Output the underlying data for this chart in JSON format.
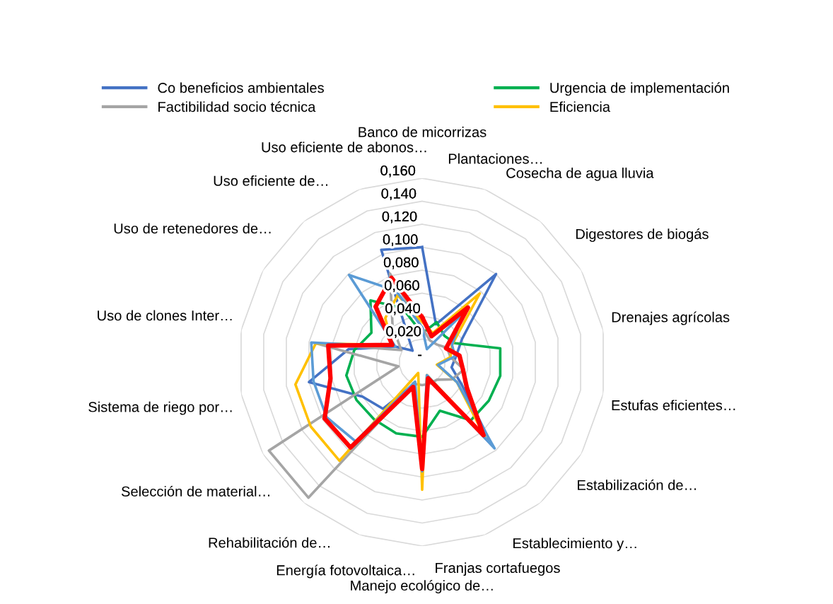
{
  "chart_data": {
    "type": "radar",
    "categories": [
      "Banco de micorrizas",
      "Plantaciones…",
      "Cosecha de agua lluvia",
      "Digestores de biogás",
      "Drenajes agrícolas",
      "Estufas eficientes…",
      "Estabilización de…",
      "Establecimiento y…",
      "Franjas cortafuegos",
      "Manejo ecológico de…",
      "Energía fotovoltaica…",
      "Rehabilitación de…",
      "Selección de material…",
      "Sistema de riego por…",
      "Uso de clones Inter…",
      "Uso de retenedores de…",
      "Uso eficiente de…",
      "Uso eficiente de abonos…"
    ],
    "series": [
      {
        "name": "Co beneficios ambientales",
        "color": "#4472c4",
        "values": [
          0.1,
          0.035,
          0.1,
          0.04,
          0.03,
          0.026,
          0.04,
          0.095,
          0.015,
          0.094,
          0.02,
          0.053,
          0.06,
          0.1,
          0.065,
          0.027,
          0.013,
          0.104
        ]
      },
      {
        "name": "Urgencia de implementación",
        "color": "#00b050",
        "values": [
          0.025,
          0.037,
          0.03,
          0.033,
          0.069,
          0.069,
          0.067,
          0.066,
          0.045,
          0.065,
          0.066,
          0.065,
          0.066,
          0.067,
          0.06,
          0.051,
          0.07,
          0.05
        ]
      },
      {
        "name": "Factibilidad socio técnica",
        "color": "#a5a5a5",
        "values": [
          0.03,
          0.02,
          0.02,
          0.025,
          0.025,
          0.037,
          0.03,
          0.02,
          0.02,
          0.02,
          0.02,
          0.154,
          0.154,
          0.021,
          0.093,
          0.021,
          0.04,
          0.082
        ]
      },
      {
        "name": "Eficiencia",
        "color": "#ffc000",
        "values": [
          0.035,
          0.027,
          0.078,
          0.03,
          0.025,
          0.013,
          0.035,
          0.085,
          0.012,
          0.111,
          0.01,
          0.112,
          0.112,
          0.112,
          0.094,
          0.03,
          0.05,
          0.062
        ]
      },
      {
        "color": "#5b9bd5",
        "values": [
          0.03,
          0.012,
          0.055,
          0.03,
          0.029,
          0.014,
          0.035,
          0.098,
          0.012,
          0.095,
          0.018,
          0.09,
          0.096,
          0.096,
          0.098,
          0.027,
          0.099,
          0.066
        ]
      },
      {
        "color": "#ff0000",
        "values": [
          0.039,
          0.024,
          0.062,
          0.024,
          0.033,
          0.036,
          0.045,
          0.083,
          0.015,
          0.093,
          0.023,
          0.097,
          0.098,
          0.081,
          0.083,
          0.03,
          0.063,
          0.078
        ]
      }
    ],
    "ylim": [
      0,
      0.16
    ],
    "yticks": [
      {
        "value": 0,
        "label": "-"
      },
      {
        "value": 0.02,
        "label": "0,020"
      },
      {
        "value": 0.04,
        "label": "0,040"
      },
      {
        "value": 0.06,
        "label": "0,060"
      },
      {
        "value": 0.08,
        "label": "0,080"
      },
      {
        "value": 0.1,
        "label": "0,100"
      },
      {
        "value": 0.12,
        "label": "0,120"
      },
      {
        "value": 0.14,
        "label": "0,140"
      },
      {
        "value": 0.16,
        "label": "0,160"
      }
    ],
    "grid": true,
    "legend": "top"
  }
}
